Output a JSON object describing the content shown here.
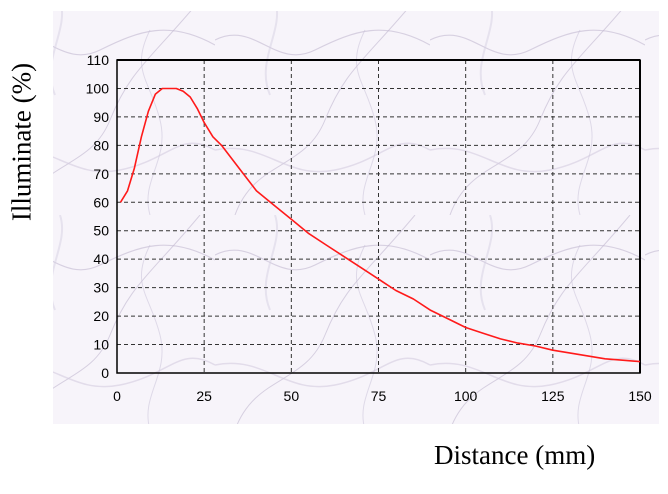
{
  "chart_data": {
    "type": "line",
    "title": "",
    "xlabel": "Distance (mm)",
    "ylabel": "Illuminate (%)",
    "xlim": [
      0,
      150
    ],
    "ylim": [
      0,
      110
    ],
    "xticks": [
      "0",
      "25",
      "50",
      "75",
      "100",
      "125",
      "150"
    ],
    "yticks": [
      "0",
      "10",
      "20",
      "30",
      "40",
      "50",
      "60",
      "70",
      "80",
      "90",
      "100",
      "110"
    ],
    "grid": true,
    "series": [
      {
        "color": "#ff1a1a",
        "x": [
          1,
          3,
          5,
          7,
          9,
          11,
          13,
          15,
          17,
          19,
          21,
          23,
          25,
          27.5,
          30,
          35,
          40,
          45,
          50,
          55,
          60,
          65,
          70,
          75,
          80,
          85,
          90,
          95,
          100,
          105,
          110,
          115,
          120,
          125,
          130,
          135,
          140,
          145,
          150
        ],
        "y": [
          60,
          64,
          72,
          83,
          92,
          98,
          100,
          100,
          100,
          99,
          97,
          93,
          88,
          83,
          80,
          72,
          64,
          59,
          54,
          49,
          45,
          41,
          37,
          33,
          29,
          26,
          22,
          19,
          16,
          14,
          12,
          10.5,
          9.5,
          8,
          7,
          6,
          5,
          4.5,
          4
        ]
      }
    ]
  },
  "colors": {
    "plot_background": "#f7f4fa",
    "marble_vein": "#b6acc6",
    "grid": "#333333",
    "frame": "#000000",
    "line": "#ff1a1a"
  }
}
